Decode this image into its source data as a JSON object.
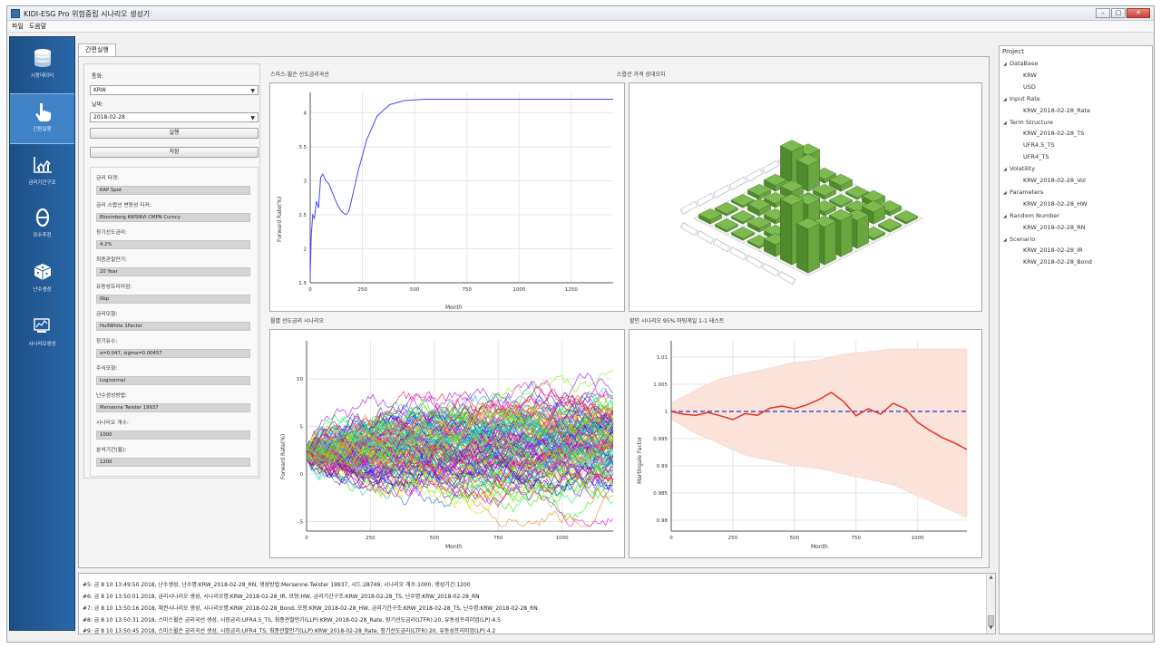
{
  "window": {
    "title": "KIDI-ESG Pro 위험중립 시나리오 생성기",
    "buttons": [
      "–",
      "□",
      "✕"
    ]
  },
  "menu": [
    "파일",
    "도움말"
  ],
  "nav": {
    "items": [
      {
        "label": "시장데이터",
        "icon": "database-icon"
      },
      {
        "label": "간편실행",
        "icon": "hand-pointer-icon"
      },
      {
        "label": "금리기간구조",
        "icon": "line-chart-icon"
      },
      {
        "label": "모수추정",
        "icon": "theta-icon"
      },
      {
        "label": "난수생성",
        "icon": "dice-icon"
      },
      {
        "label": "시나리오생성",
        "icon": "scenario-icon"
      }
    ]
  },
  "tab": {
    "label": "간편실행"
  },
  "form": {
    "currency_label": "통화:",
    "currency_value": "KRW",
    "date_label": "날짜:",
    "date_value": "2018-02-28",
    "run_button": "실행",
    "save_button": "저장",
    "info": [
      {
        "label": "금리 타겟:",
        "value": "KAP Spot"
      },
      {
        "label": "금리 스왑션 변동성 티커:",
        "value": "Bloomberg KWSNVI CMPN Curncy"
      },
      {
        "label": "장기선도금리:",
        "value": "4.2%"
      },
      {
        "label": "최종관찰만기:",
        "value": "20 Year"
      },
      {
        "label": "유동성프리미엄:",
        "value": "0bp"
      },
      {
        "label": "금리모형:",
        "value": "HullWhite 1Factor"
      },
      {
        "label": "장기유수:",
        "value": "a=0.047, sigma=0.00457"
      },
      {
        "label": "주식모형:",
        "value": "Lognormal"
      },
      {
        "label": "난수생성방법:",
        "value": "Mersenne Twister 19937"
      },
      {
        "label": "시나리오 개수:",
        "value": "1000"
      },
      {
        "label": "분석기간(월):",
        "value": "1200"
      }
    ]
  },
  "charts": {
    "forward_curve": {
      "title": "스미스-윌슨 선도금리곡선",
      "ylabel": "Forward Rate(%)",
      "xlabel": "Month",
      "xticks": [
        "0",
        "250",
        "500",
        "750",
        "1000",
        "1250"
      ],
      "yticks": [
        "1.5",
        "2",
        "2.5",
        "3",
        "3.5",
        "4"
      ]
    },
    "swaption_3d": {
      "title": "스왑션 가격 상대오차"
    },
    "scenario_paths": {
      "title": "월별 선도금리 시나리오",
      "ylabel": "Forward Rate(%)",
      "xlabel": "Month",
      "xticks": [
        "0",
        "250",
        "500",
        "750",
        "1000"
      ],
      "yticks": [
        "-5",
        "0",
        "5",
        "10"
      ]
    },
    "martingale": {
      "title": "할인 시나리오 95% 마팅게일 1-1 테스트",
      "ylabel": "Martingale Factor",
      "xlabel": "Month",
      "xticks": [
        "0",
        "250",
        "500",
        "750",
        "1000"
      ],
      "yticks": [
        "0.98",
        "0.985",
        "0.99",
        "0.995",
        "1",
        "1.005",
        "1.01"
      ]
    }
  },
  "chart_data": [
    {
      "type": "line",
      "title": "스미스-윌슨 선도금리곡선",
      "xlabel": "Month",
      "ylabel": "Forward Rate(%)",
      "xlim": [
        0,
        1450
      ],
      "ylim": [
        1.5,
        4.3
      ],
      "series": [
        {
          "color": "#4646ff",
          "x": [
            0,
            5,
            12,
            20,
            30,
            40,
            50,
            60,
            75,
            90,
            110,
            130,
            150,
            170,
            185,
            200,
            230,
            270,
            320,
            380,
            450,
            550,
            700,
            900,
            1100,
            1300,
            1450
          ],
          "y": [
            1.6,
            2.2,
            2.5,
            2.45,
            2.7,
            2.6,
            3.05,
            3.1,
            3.0,
            2.95,
            2.8,
            2.65,
            2.55,
            2.5,
            2.55,
            2.75,
            3.15,
            3.6,
            3.95,
            4.12,
            4.18,
            4.2,
            4.2,
            4.2,
            4.2,
            4.2,
            4.2
          ]
        }
      ]
    },
    {
      "type": "line",
      "title": "월별 선도금리 시나리오",
      "xlabel": "Month",
      "ylabel": "Forward Rate(%)",
      "xlim": [
        0,
        1200
      ],
      "ylim": [
        -6,
        14
      ],
      "scenario_count": 1000
    },
    {
      "type": "line",
      "title": "할인 시나리오 95% 마팅게일 1-1 테스트",
      "xlabel": "Month",
      "ylabel": "Martingale Factor",
      "xlim": [
        0,
        1200
      ],
      "ylim": [
        0.978,
        1.013
      ],
      "series": [
        {
          "name": "band",
          "color": "#fbe3da",
          "x": [
            0,
            100,
            200,
            300,
            400,
            500,
            600,
            700,
            800,
            900,
            1000,
            1100,
            1200
          ],
          "upper": [
            1.0015,
            1.004,
            1.006,
            1.007,
            1.008,
            1.009,
            1.0095,
            1.0105,
            1.011,
            1.0115,
            1.0115,
            1.0115,
            1.0115
          ],
          "lower": [
            0.9985,
            0.996,
            0.994,
            0.992,
            0.991,
            0.99,
            0.9895,
            0.9885,
            0.9875,
            0.9865,
            0.9845,
            0.9825,
            0.9805
          ]
        },
        {
          "name": "martingale",
          "color": "#e63025",
          "x": [
            0,
            50,
            100,
            150,
            200,
            250,
            300,
            350,
            400,
            450,
            500,
            550,
            600,
            650,
            700,
            750,
            800,
            850,
            900,
            950,
            1000,
            1050,
            1100,
            1150,
            1200
          ],
          "y": [
            1.0,
            0.9995,
            0.9993,
            0.9998,
            0.9992,
            0.9985,
            0.9996,
            0.9993,
            1.0006,
            1.001,
            1.0005,
            1.0012,
            1.0022,
            1.0035,
            1.0018,
            0.9992,
            1.0005,
            0.9995,
            1.0015,
            1.0005,
            0.998,
            0.9965,
            0.9952,
            0.9942,
            0.993
          ]
        },
        {
          "name": "reference",
          "color": "#2233d8",
          "x": [
            0,
            1200
          ],
          "y": [
            1.0,
            1.0
          ]
        }
      ]
    }
  ],
  "project": {
    "title": "Project",
    "tree": [
      {
        "label": "DataBase",
        "level": 0
      },
      {
        "label": "KRW",
        "level": 1
      },
      {
        "label": "USD",
        "level": 1
      },
      {
        "label": "Input Rate",
        "level": 0
      },
      {
        "label": "KRW_2018-02-28_Rate",
        "level": 1
      },
      {
        "label": "Term Structure",
        "level": 0
      },
      {
        "label": "KRW_2018-02-28_TS",
        "level": 1
      },
      {
        "label": "UFR4.5_TS",
        "level": 1
      },
      {
        "label": "UFR4_TS",
        "level": 1
      },
      {
        "label": "Volatility",
        "level": 0
      },
      {
        "label": "KRW_2018-02-28_Vol",
        "level": 1
      },
      {
        "label": "Parameters",
        "level": 0
      },
      {
        "label": "KRW_2018-02-28_HW",
        "level": 1
      },
      {
        "label": "Random Number",
        "level": 0
      },
      {
        "label": "KRW_2018-02-28_RN",
        "level": 1
      },
      {
        "label": "Scenario",
        "level": 0
      },
      {
        "label": "KRW_2018-02-28_IR",
        "level": 1
      },
      {
        "label": "KRW_2018-02-28_Bond",
        "level": 1
      }
    ]
  },
  "log": [
    "#5: 금 8 10 13:49:50 2018,  난수생성, 난수명:KRW_2018-02-28_RN, 생성방법:Mersenne Twister 19937, 시드:28749, 시나리오 개수:1000, 생성기간:1200",
    "#6: 금 8 10 13:50:01 2018,  금리시나리오 생성, 시나리오명:KRW_2018-02-28_IR, 모형:HW, 금리기간구조:KRW_2018-02-28_TS, 난수명:KRW_2018-02-28_RN",
    "#7: 금 8 10 13:50:16 2018,  채권시나리오 생성, 시나리오명:KRW_2018-02-28_Bond, 모형:KRW_2018-02-28_HW, 금리기간구조:KRW_2018-02-28_TS, 난수명:KRW_2018-02-28_RN",
    "#8: 금 8 10 13:50:31 2018,  스미스윌슨 금리곡선 생성, 시장금리:UFR4.5_TS, 최종관찰만기(LLP):KRW_2018-02-28_Rate, 장기선도금리(LTFR):20, 유동성프리미엄(LP):4.5",
    "#9: 금 8 10 13:50:45 2018,  스미스윌슨 금리곡선 생성, 시장금리:UFR4_TS, 최종관찰만기(LLP):KRW_2018-02-28_Rate, 장기선도금리(LTFR):20, 유동성프리미엄(LP):4.2"
  ]
}
